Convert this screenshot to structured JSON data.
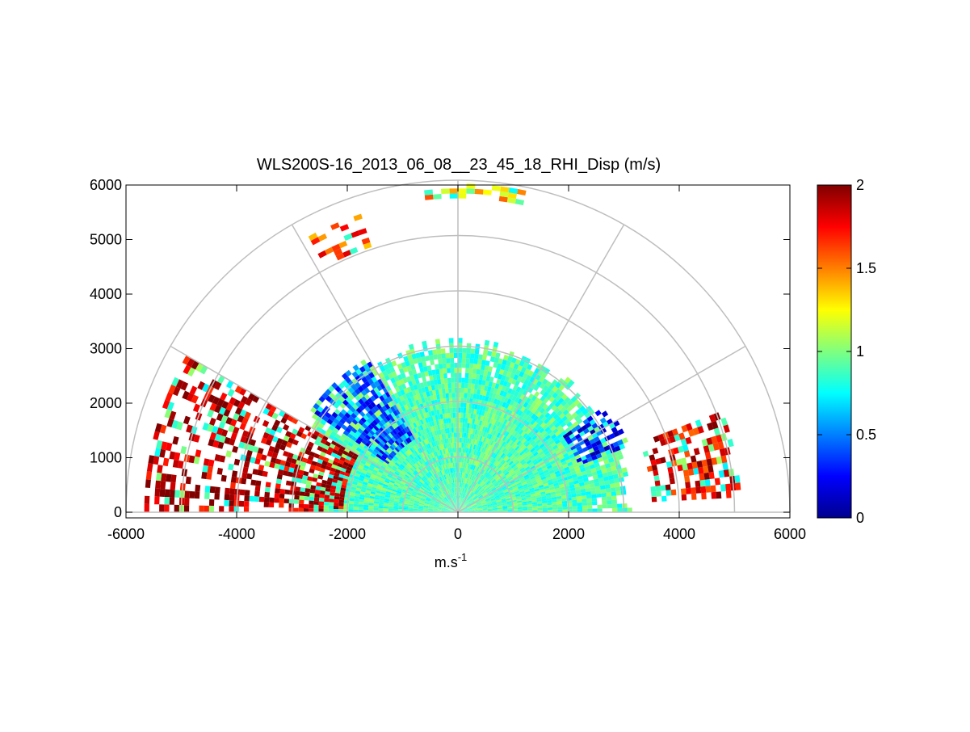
{
  "chart_data": {
    "type": "heatmap",
    "subtype": "polar-rhi-scan",
    "title": "WLS200S-16_2013_06_08__23_45_18_RHI_Disp (m/s)",
    "xlabel": "m.s",
    "xlabel_superscript": "-1",
    "ylabel": "",
    "xlim": [
      -6000,
      6000
    ],
    "ylim": [
      0,
      6000
    ],
    "x_ticks": [
      "-6000",
      "-4000",
      "-2000",
      "0",
      "2000",
      "4000",
      "6000"
    ],
    "y_ticks": [
      "0",
      "1000",
      "2000",
      "3000",
      "4000",
      "5000",
      "6000"
    ],
    "x_tick_values": [
      -6000,
      -4000,
      -2000,
      0,
      2000,
      4000,
      6000
    ],
    "y_tick_values": [
      0,
      1000,
      2000,
      3000,
      4000,
      5000,
      6000
    ],
    "polar_grid_ranges": [
      1000,
      2000,
      3000,
      4000,
      5000,
      6000
    ],
    "polar_grid_angles_deg": [
      0,
      30,
      60,
      90,
      120,
      150,
      180
    ],
    "colorbar": {
      "colormap": "jet",
      "range": [
        0,
        2
      ],
      "tick_values": [
        0,
        0.5,
        1,
        1.5,
        2
      ],
      "tick_labels": [
        "0",
        "0.5",
        "1",
        "1.5",
        "2"
      ]
    },
    "grid": true,
    "main_echo_max_range_m": 3000,
    "sparse_echo_max_range_m": 5900,
    "background_value_estimate": 0.9,
    "regions": [
      {
        "name": "low-elevation left (west) sector",
        "angle_deg": [
          150,
          180
        ],
        "range_m": [
          2000,
          5600
        ],
        "typical_value": 1.9
      },
      {
        "name": "blue band left",
        "angle_deg": [
          120,
          145
        ],
        "range_m": [
          1500,
          3200
        ],
        "typical_value": 0.4
      },
      {
        "name": "blue band right",
        "angle_deg": [
          20,
          35
        ],
        "range_m": [
          2300,
          3300
        ],
        "typical_value": 0.3
      },
      {
        "name": "low-elevation right (east) sector",
        "angle_deg": [
          2,
          20
        ],
        "range_m": [
          3500,
          5100
        ],
        "typical_value": 1.8
      },
      {
        "name": "upper-left cluster",
        "angle_deg": [
          108,
          118
        ],
        "range_m": [
          5000,
          5600
        ],
        "typical_value": 1.6
      },
      {
        "name": "top cluster",
        "angle_deg": [
          78,
          95
        ],
        "range_m": [
          5600,
          5900
        ],
        "typical_value": 1.4
      }
    ]
  }
}
